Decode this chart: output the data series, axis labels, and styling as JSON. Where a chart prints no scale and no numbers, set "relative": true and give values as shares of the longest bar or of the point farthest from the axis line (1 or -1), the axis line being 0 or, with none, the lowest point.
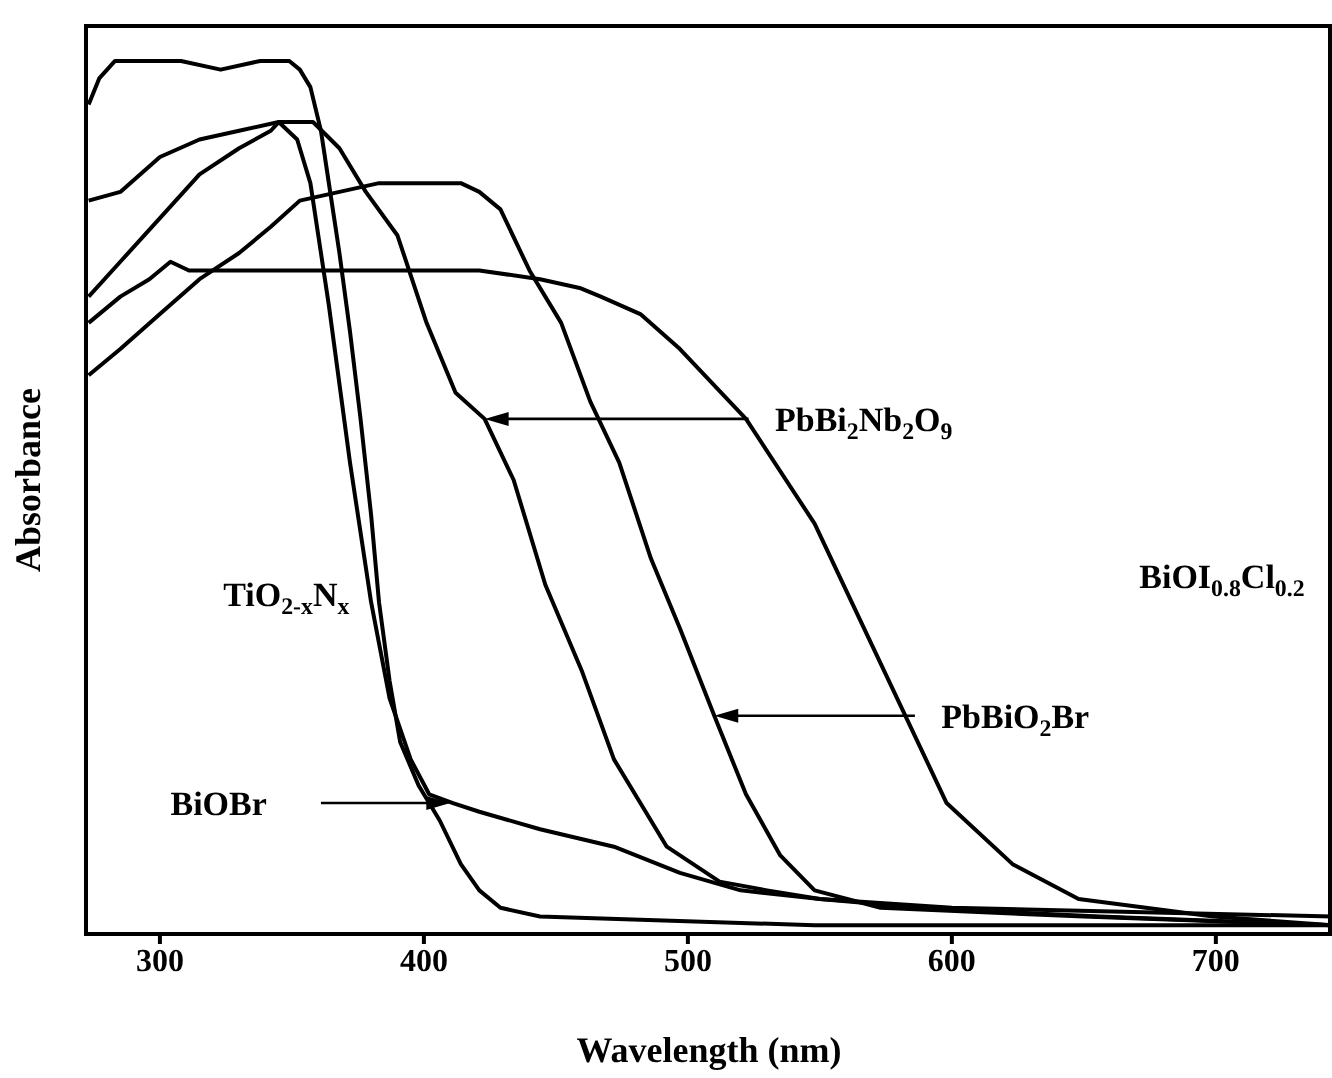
{
  "chart_data": {
    "type": "line",
    "xlabel": "Wavelength (nm)",
    "ylabel": "Absorbance",
    "relative": true,
    "xlim": [
      272,
      744
    ],
    "xticks": [
      300,
      400,
      500,
      600,
      700
    ],
    "marker": "none",
    "line_style": "solid",
    "annotations": [
      "TiO$_{2-x}$N$_{x}$",
      "BiOBr",
      "PbBi$_{2}$Nb$_{2}$O$_{9}$",
      "PbBiO$_{2}$Br",
      "BiOI$_{0.8}$Cl$_{0.2}$"
    ],
    "series": [
      {
        "color": "#000000",
        "x": [
          273,
          277,
          283,
          292,
          308,
          323,
          338,
          349,
          353,
          357,
          361,
          364,
          368,
          372,
          376,
          380,
          383,
          387,
          391,
          398,
          406,
          414,
          421,
          429,
          444,
          548,
          744
        ],
        "values": [
          0.95,
          0.98,
          1.0,
          1.0,
          1.0,
          0.99,
          1.0,
          1.0,
          0.99,
          0.97,
          0.92,
          0.86,
          0.78,
          0.69,
          0.59,
          0.48,
          0.38,
          0.29,
          0.22,
          0.17,
          0.13,
          0.08,
          0.05,
          0.03,
          0.02,
          0.01,
          0.01
        ]
      },
      {
        "color": "#000000",
        "x": [
          273,
          285,
          300,
          315,
          330,
          342,
          345,
          352,
          357,
          364,
          372,
          380,
          387,
          395,
          402,
          411,
          421,
          444,
          472,
          497,
          520,
          550,
          588,
          656,
          744
        ],
        "values": [
          0.73,
          0.77,
          0.82,
          0.87,
          0.9,
          0.92,
          0.93,
          0.91,
          0.86,
          0.72,
          0.54,
          0.38,
          0.27,
          0.2,
          0.16,
          0.15,
          0.14,
          0.12,
          0.1,
          0.07,
          0.05,
          0.04,
          0.03,
          0.02,
          0.01
        ]
      },
      {
        "color": "#000000",
        "x": [
          273,
          285,
          300,
          315,
          330,
          345,
          358,
          368,
          378,
          390,
          401,
          412,
          423,
          434,
          446,
          460,
          472,
          484,
          492,
          502,
          512,
          530,
          550,
          600,
          744
        ],
        "values": [
          0.84,
          0.85,
          0.89,
          0.91,
          0.92,
          0.93,
          0.93,
          0.9,
          0.85,
          0.8,
          0.7,
          0.62,
          0.59,
          0.52,
          0.4,
          0.3,
          0.2,
          0.14,
          0.1,
          0.08,
          0.06,
          0.05,
          0.04,
          0.03,
          0.02
        ]
      },
      {
        "color": "#000000",
        "x": [
          273,
          285,
          300,
          315,
          330,
          342,
          353,
          368,
          383,
          398,
          414,
          421,
          429,
          440,
          452,
          463,
          474,
          486,
          497,
          510,
          522,
          535,
          548,
          573,
          650,
          744
        ],
        "values": [
          0.64,
          0.67,
          0.71,
          0.75,
          0.78,
          0.81,
          0.84,
          0.85,
          0.86,
          0.86,
          0.86,
          0.85,
          0.83,
          0.76,
          0.7,
          0.61,
          0.54,
          0.43,
          0.35,
          0.25,
          0.16,
          0.09,
          0.05,
          0.03,
          0.02,
          0.01
        ]
      },
      {
        "color": "#000000",
        "x": [
          273,
          285,
          296,
          304,
          311,
          323,
          338,
          361,
          391,
          421,
          444,
          459,
          467,
          482,
          497,
          522,
          548,
          573,
          598,
          623,
          648,
          699,
          744
        ],
        "values": [
          0.7,
          0.73,
          0.75,
          0.77,
          0.76,
          0.76,
          0.76,
          0.76,
          0.76,
          0.76,
          0.75,
          0.74,
          0.73,
          0.71,
          0.67,
          0.59,
          0.47,
          0.31,
          0.15,
          0.08,
          0.04,
          0.02,
          0.01
        ]
      }
    ]
  }
}
